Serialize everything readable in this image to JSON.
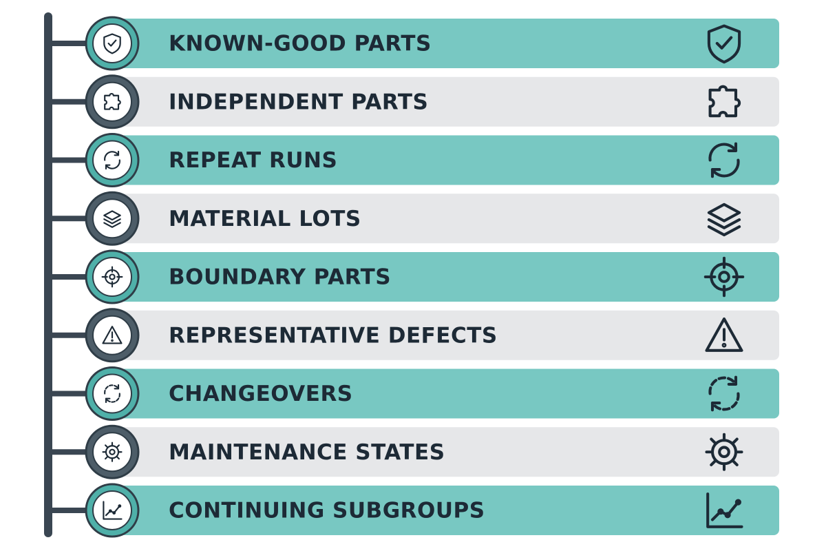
{
  "items": [
    {
      "label": "KNOWN-GOOD PARTS"
    },
    {
      "label": "INDEPENDENT PARTS"
    },
    {
      "label": "REPEAT RUNS"
    },
    {
      "label": "MATERIAL LOTS"
    },
    {
      "label": "BOUNDARY PARTS"
    },
    {
      "label": "REPRESENTATIVE DEFECTS"
    },
    {
      "label": "CHANGEOVERS"
    },
    {
      "label": "MAINTENANCE STATES"
    },
    {
      "label": "CONTINUING SUBGROUPS"
    }
  ]
}
